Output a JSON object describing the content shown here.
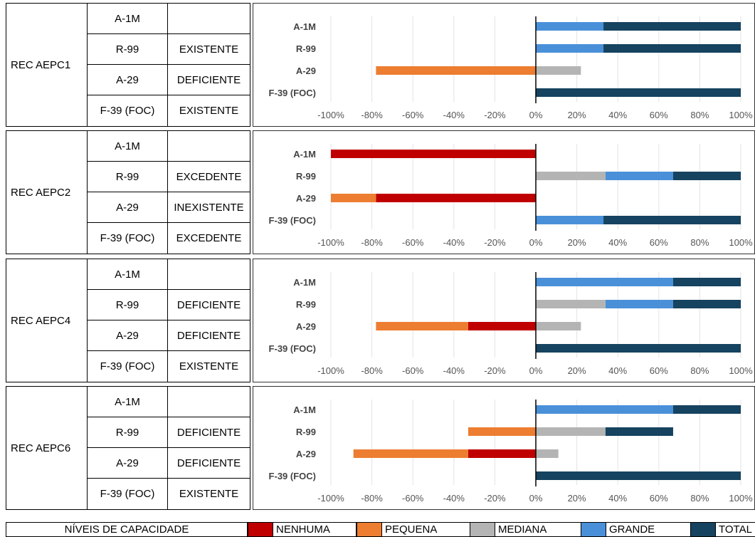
{
  "caption": "",
  "colors": {
    "NENHUMA": "#c00000",
    "PEQUENA": "#ed7d31",
    "MEDIANA": "#b4b4b4",
    "GRANDE": "#4a90d9",
    "TOTAL": "#154360"
  },
  "chart_data": [
    {
      "type": "bar",
      "orientation": "horizontal",
      "stacked": true,
      "group": "REC AEPC1",
      "categories": [
        "A-1M",
        "R-99",
        "A-29",
        "F-39 (FOC)"
      ],
      "xlim": [
        -100,
        100
      ],
      "xticks": [
        "-100%",
        "-80%",
        "-60%",
        "-40%",
        "-20%",
        "0%",
        "20%",
        "40%",
        "60%",
        "80%",
        "100%"
      ],
      "series": [
        {
          "name": "NENHUMA",
          "values": [
            0,
            0,
            0,
            0
          ]
        },
        {
          "name": "PEQUENA",
          "values": [
            0,
            0,
            -78,
            0
          ]
        },
        {
          "name": "MEDIANA",
          "values": [
            0,
            0,
            22,
            0
          ]
        },
        {
          "name": "GRANDE",
          "values": [
            33,
            33,
            0,
            0
          ]
        },
        {
          "name": "TOTAL",
          "values": [
            67,
            67,
            0,
            100
          ]
        }
      ]
    },
    {
      "type": "bar",
      "orientation": "horizontal",
      "stacked": true,
      "group": "REC AEPC2",
      "categories": [
        "A-1M",
        "R-99",
        "A-29",
        "F-39 (FOC)"
      ],
      "xlim": [
        -100,
        100
      ],
      "xticks": [
        "-100%",
        "-80%",
        "-60%",
        "-40%",
        "-20%",
        "0%",
        "20%",
        "40%",
        "60%",
        "80%",
        "100%"
      ],
      "series": [
        {
          "name": "NENHUMA",
          "values": [
            -100,
            0,
            -78,
            0
          ]
        },
        {
          "name": "PEQUENA",
          "values": [
            0,
            0,
            -22,
            0
          ]
        },
        {
          "name": "MEDIANA",
          "values": [
            0,
            34,
            0,
            0
          ]
        },
        {
          "name": "GRANDE",
          "values": [
            0,
            33,
            0,
            33
          ]
        },
        {
          "name": "TOTAL",
          "values": [
            0,
            33,
            0,
            67
          ]
        }
      ]
    },
    {
      "type": "bar",
      "orientation": "horizontal",
      "stacked": true,
      "group": "REC AEPC4",
      "categories": [
        "A-1M",
        "R-99",
        "A-29",
        "F-39 (FOC)"
      ],
      "xlim": [
        -100,
        100
      ],
      "xticks": [
        "-100%",
        "-80%",
        "-60%",
        "-40%",
        "-20%",
        "0%",
        "20%",
        "40%",
        "60%",
        "80%",
        "100%"
      ],
      "series": [
        {
          "name": "NENHUMA",
          "values": [
            0,
            0,
            -33,
            0
          ]
        },
        {
          "name": "PEQUENA",
          "values": [
            0,
            0,
            -45,
            0
          ]
        },
        {
          "name": "MEDIANA",
          "values": [
            0,
            34,
            22,
            0
          ]
        },
        {
          "name": "GRANDE",
          "values": [
            67,
            33,
            0,
            0
          ]
        },
        {
          "name": "TOTAL",
          "values": [
            33,
            33,
            0,
            100
          ]
        }
      ]
    },
    {
      "type": "bar",
      "orientation": "horizontal",
      "stacked": true,
      "group": "REC AEPC6",
      "categories": [
        "A-1M",
        "R-99",
        "A-29",
        "F-39 (FOC)"
      ],
      "xlim": [
        -100,
        100
      ],
      "xticks": [
        "-100%",
        "-80%",
        "-60%",
        "-40%",
        "-20%",
        "0%",
        "20%",
        "40%",
        "60%",
        "80%",
        "100%"
      ],
      "series": [
        {
          "name": "NENHUMA",
          "values": [
            0,
            0,
            -33,
            0
          ]
        },
        {
          "name": "PEQUENA",
          "values": [
            0,
            -33,
            -56,
            0
          ]
        },
        {
          "name": "MEDIANA",
          "values": [
            0,
            34,
            11,
            0
          ]
        },
        {
          "name": "GRANDE",
          "values": [
            67,
            0,
            0,
            0
          ]
        },
        {
          "name": "TOTAL",
          "values": [
            33,
            33,
            0,
            100
          ]
        }
      ]
    }
  ],
  "tables": [
    {
      "group": "REC AEPC1",
      "rows": [
        {
          "equipment": "A-1M",
          "status": ""
        },
        {
          "equipment": "R-99",
          "status": "EXISTENTE"
        },
        {
          "equipment": "A-29",
          "status": "DEFICIENTE"
        },
        {
          "equipment": "F-39 (FOC)",
          "status": "EXISTENTE"
        }
      ]
    },
    {
      "group": "REC AEPC2",
      "rows": [
        {
          "equipment": "A-1M",
          "status": ""
        },
        {
          "equipment": "R-99",
          "status": "EXCEDENTE"
        },
        {
          "equipment": "A-29",
          "status": "INEXISTENTE"
        },
        {
          "equipment": "F-39 (FOC)",
          "status": "EXCEDENTE"
        }
      ]
    },
    {
      "group": "REC AEPC4",
      "rows": [
        {
          "equipment": "A-1M",
          "status": ""
        },
        {
          "equipment": "R-99",
          "status": "DEFICIENTE"
        },
        {
          "equipment": "A-29",
          "status": "DEFICIENTE"
        },
        {
          "equipment": "F-39 (FOC)",
          "status": "EXISTENTE"
        }
      ]
    },
    {
      "group": "REC AEPC6",
      "rows": [
        {
          "equipment": "A-1M",
          "status": ""
        },
        {
          "equipment": "R-99",
          "status": "DEFICIENTE"
        },
        {
          "equipment": "A-29",
          "status": "DEFICIENTE"
        },
        {
          "equipment": "F-39 (FOC)",
          "status": "EXISTENTE"
        }
      ]
    }
  ],
  "legend": {
    "title": "NÍVEIS DE CAPACIDADE",
    "items": [
      "NENHUMA",
      "PEQUENA",
      "MEDIANA",
      "GRANDE",
      "TOTAL"
    ]
  }
}
